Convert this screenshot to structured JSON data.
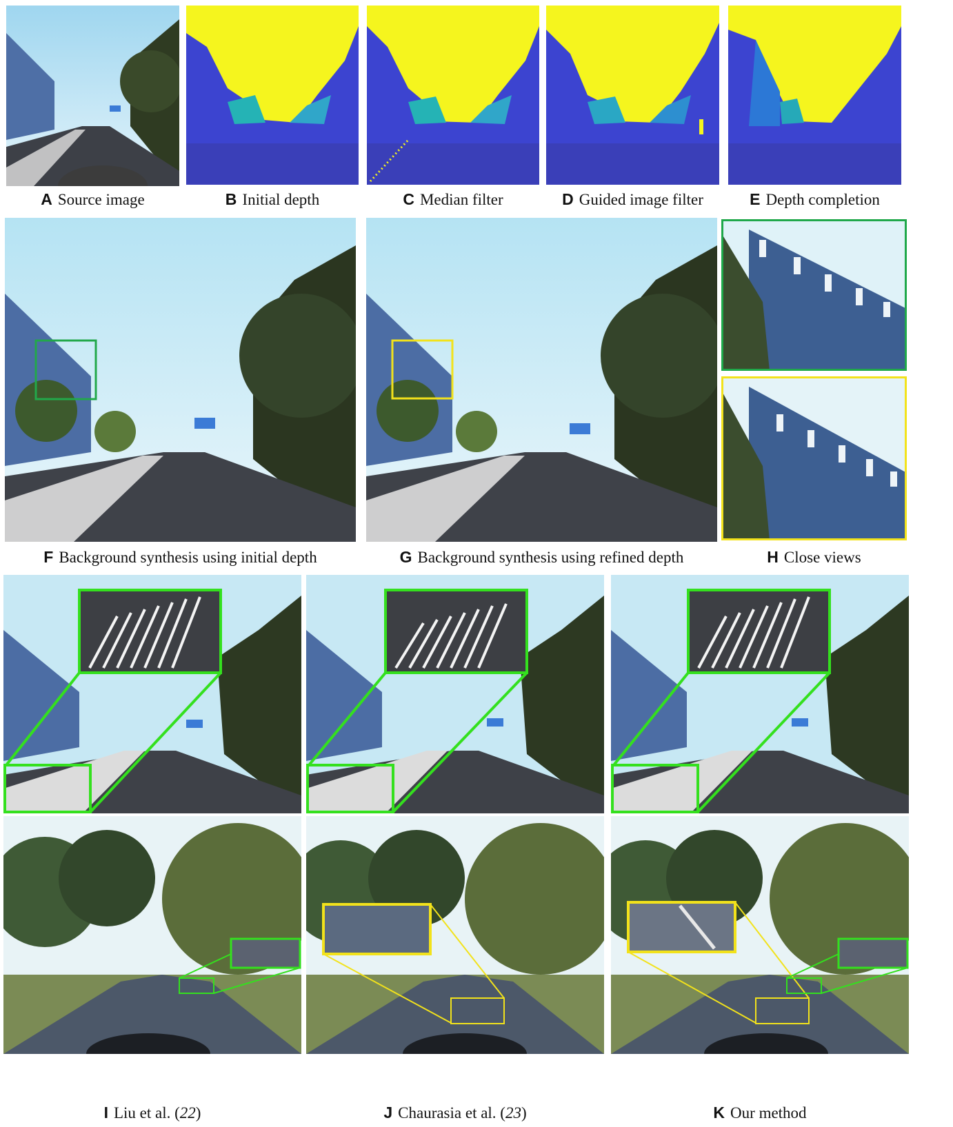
{
  "figure": {
    "rows": [
      {
        "panels": [
          {
            "letter": "A",
            "caption": "Source image",
            "kind": "photo-street"
          },
          {
            "letter": "B",
            "caption": "Initial depth",
            "kind": "depth-map"
          },
          {
            "letter": "C",
            "caption": "Median filter",
            "kind": "depth-map"
          },
          {
            "letter": "D",
            "caption": "Guided image filter",
            "kind": "depth-map"
          },
          {
            "letter": "E",
            "caption": "Depth completion",
            "kind": "depth-map"
          }
        ]
      },
      {
        "panels": [
          {
            "letter": "F",
            "caption": "Background synthesis using initial depth",
            "kind": "photo-street",
            "highlight_color": "#22a84a"
          },
          {
            "letter": "G",
            "caption": "Background synthesis using refined depth",
            "kind": "photo-street",
            "highlight_color": "#f2e21b"
          },
          {
            "letter": "H",
            "caption": "Close views",
            "kind": "zoom-crops"
          }
        ]
      },
      {
        "panels": [
          {
            "letter": "I",
            "caption": "Liu et al. (",
            "ref": "22",
            "caption_end": ")",
            "kind": "comparison"
          },
          {
            "letter": "J",
            "caption": "Chaurasia et al. (",
            "ref": "23",
            "caption_end": ")",
            "kind": "comparison"
          },
          {
            "letter": "K",
            "caption": "Our method",
            "kind": "comparison"
          }
        ]
      }
    ],
    "colors": {
      "depth_far": "#f5f51e",
      "depth_near": "#3b3fd6",
      "zoom_green": "#34e01e",
      "zoom_yellow": "#f2e21b",
      "close_green": "#1fa84a",
      "sky": "#bfe6f5"
    }
  }
}
